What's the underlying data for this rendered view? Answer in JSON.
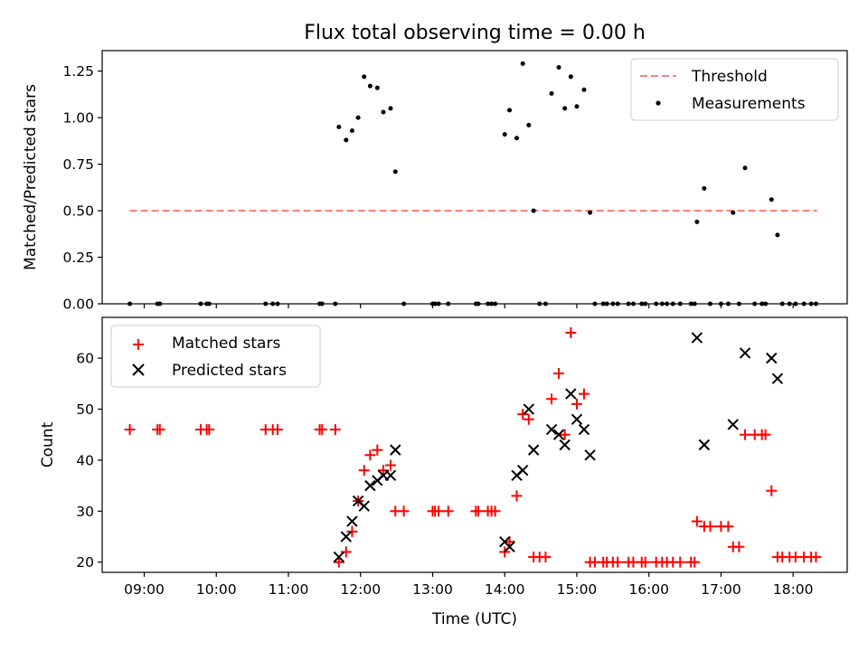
{
  "chart_data": [
    {
      "type": "scatter",
      "title": "Flux total observing time = 0.00 h",
      "xlabel": "",
      "ylabel": "Matched/Predicted stars",
      "xlim": [
        "08:25",
        "18:45"
      ],
      "ylim": [
        0,
        1.36
      ],
      "yticks": [
        0,
        0.25,
        0.5,
        0.75,
        1.0,
        1.25
      ],
      "ytick_labels": [
        "0.00",
        "0.25",
        "0.50",
        "0.75",
        "1.00",
        "1.25"
      ],
      "legend_position": "top-right",
      "legend": [
        "Threshold",
        "Measurements"
      ],
      "threshold": {
        "name": "Threshold",
        "color": "#ff7f7f",
        "style": "dashed",
        "x_range": [
          "08:48",
          "18:20"
        ],
        "y": 0.5
      },
      "series": [
        {
          "name": "Measurements",
          "color": "#000000",
          "marker": "dot",
          "points": [
            {
              "x": "08:48",
              "y": 0
            },
            {
              "x": "09:11",
              "y": 0
            },
            {
              "x": "09:13",
              "y": 0
            },
            {
              "x": "09:47",
              "y": 0
            },
            {
              "x": "09:52",
              "y": 0
            },
            {
              "x": "09:54",
              "y": 0
            },
            {
              "x": "10:41",
              "y": 0
            },
            {
              "x": "10:47",
              "y": 0
            },
            {
              "x": "10:51",
              "y": 0
            },
            {
              "x": "11:26",
              "y": 0
            },
            {
              "x": "11:28",
              "y": 0
            },
            {
              "x": "11:39",
              "y": 0
            },
            {
              "x": "11:42",
              "y": 0.95
            },
            {
              "x": "11:48",
              "y": 0.88
            },
            {
              "x": "11:53",
              "y": 0.93
            },
            {
              "x": "11:58",
              "y": 1.0
            },
            {
              "x": "12:03",
              "y": 1.22
            },
            {
              "x": "12:08",
              "y": 1.17
            },
            {
              "x": "12:14",
              "y": 1.16
            },
            {
              "x": "12:19",
              "y": 1.03
            },
            {
              "x": "12:25",
              "y": 1.05
            },
            {
              "x": "12:29",
              "y": 0.71
            },
            {
              "x": "12:36",
              "y": 0
            },
            {
              "x": "13:00",
              "y": 0
            },
            {
              "x": "13:02",
              "y": 0
            },
            {
              "x": "13:05",
              "y": 0
            },
            {
              "x": "13:13",
              "y": 0
            },
            {
              "x": "13:36",
              "y": 0
            },
            {
              "x": "13:38",
              "y": 0
            },
            {
              "x": "13:46",
              "y": 0
            },
            {
              "x": "13:49",
              "y": 0
            },
            {
              "x": "13:52",
              "y": 0
            },
            {
              "x": "14:00",
              "y": 0.91
            },
            {
              "x": "14:04",
              "y": 1.04
            },
            {
              "x": "14:10",
              "y": 0.89
            },
            {
              "x": "14:15",
              "y": 1.29
            },
            {
              "x": "14:20",
              "y": 0.96
            },
            {
              "x": "14:24",
              "y": 0.5
            },
            {
              "x": "14:29",
              "y": 0
            },
            {
              "x": "14:34",
              "y": 0
            },
            {
              "x": "14:39",
              "y": 1.13
            },
            {
              "x": "14:45",
              "y": 1.27
            },
            {
              "x": "14:50",
              "y": 1.05
            },
            {
              "x": "14:55",
              "y": 1.22
            },
            {
              "x": "15:00",
              "y": 1.06
            },
            {
              "x": "15:06",
              "y": 1.15
            },
            {
              "x": "15:11",
              "y": 0.49
            },
            {
              "x": "15:15",
              "y": 0
            },
            {
              "x": "15:22",
              "y": 0
            },
            {
              "x": "15:25",
              "y": 0
            },
            {
              "x": "15:30",
              "y": 0
            },
            {
              "x": "15:34",
              "y": 0
            },
            {
              "x": "15:43",
              "y": 0
            },
            {
              "x": "15:47",
              "y": 0
            },
            {
              "x": "15:54",
              "y": 0
            },
            {
              "x": "15:57",
              "y": 0
            },
            {
              "x": "16:06",
              "y": 0
            },
            {
              "x": "16:11",
              "y": 0
            },
            {
              "x": "16:15",
              "y": 0
            },
            {
              "x": "16:20",
              "y": 0
            },
            {
              "x": "16:26",
              "y": 0
            },
            {
              "x": "16:35",
              "y": 0
            },
            {
              "x": "16:38",
              "y": 0
            },
            {
              "x": "16:40",
              "y": 0.44
            },
            {
              "x": "16:46",
              "y": 0.62
            },
            {
              "x": "16:51",
              "y": 0
            },
            {
              "x": "17:00",
              "y": 0
            },
            {
              "x": "17:06",
              "y": 0
            },
            {
              "x": "17:10",
              "y": 0.49
            },
            {
              "x": "17:15",
              "y": 0
            },
            {
              "x": "17:20",
              "y": 0.73
            },
            {
              "x": "17:28",
              "y": 0
            },
            {
              "x": "17:34",
              "y": 0
            },
            {
              "x": "17:37",
              "y": 0
            },
            {
              "x": "17:42",
              "y": 0.56
            },
            {
              "x": "17:47",
              "y": 0.37
            },
            {
              "x": "17:51",
              "y": 0
            },
            {
              "x": "17:57",
              "y": 0
            },
            {
              "x": "18:02",
              "y": 0
            },
            {
              "x": "18:09",
              "y": 0
            },
            {
              "x": "18:15",
              "y": 0
            },
            {
              "x": "18:19",
              "y": 0
            }
          ]
        }
      ]
    },
    {
      "type": "scatter",
      "title": "",
      "xlabel": "Time (UTC)",
      "ylabel": "Count",
      "xlim": [
        "08:25",
        "18:45"
      ],
      "ylim": [
        18,
        68
      ],
      "yticks": [
        20,
        30,
        40,
        50,
        60
      ],
      "ytick_labels": [
        "20",
        "30",
        "40",
        "50",
        "60"
      ],
      "xticks": [
        "09:00",
        "10:00",
        "11:00",
        "12:00",
        "13:00",
        "14:00",
        "15:00",
        "16:00",
        "17:00",
        "18:00"
      ],
      "legend_position": "top-left",
      "legend": [
        "Matched stars",
        "Predicted stars"
      ],
      "series": [
        {
          "name": "Matched stars",
          "color": "#ff0000",
          "marker": "plus",
          "points": [
            {
              "x": "08:48",
              "y": 46
            },
            {
              "x": "09:11",
              "y": 46
            },
            {
              "x": "09:13",
              "y": 46
            },
            {
              "x": "09:47",
              "y": 46
            },
            {
              "x": "09:52",
              "y": 46
            },
            {
              "x": "09:54",
              "y": 46
            },
            {
              "x": "10:41",
              "y": 46
            },
            {
              "x": "10:47",
              "y": 46
            },
            {
              "x": "10:51",
              "y": 46
            },
            {
              "x": "11:26",
              "y": 46
            },
            {
              "x": "11:28",
              "y": 46
            },
            {
              "x": "11:39",
              "y": 46
            },
            {
              "x": "11:42",
              "y": 20
            },
            {
              "x": "11:48",
              "y": 22
            },
            {
              "x": "11:53",
              "y": 26
            },
            {
              "x": "11:58",
              "y": 32
            },
            {
              "x": "12:03",
              "y": 38
            },
            {
              "x": "12:08",
              "y": 41
            },
            {
              "x": "12:14",
              "y": 42
            },
            {
              "x": "12:19",
              "y": 38
            },
            {
              "x": "12:25",
              "y": 39
            },
            {
              "x": "12:29",
              "y": 30
            },
            {
              "x": "12:36",
              "y": 30
            },
            {
              "x": "13:00",
              "y": 30
            },
            {
              "x": "13:02",
              "y": 30
            },
            {
              "x": "13:05",
              "y": 30
            },
            {
              "x": "13:13",
              "y": 30
            },
            {
              "x": "13:36",
              "y": 30
            },
            {
              "x": "13:38",
              "y": 30
            },
            {
              "x": "13:46",
              "y": 30
            },
            {
              "x": "13:49",
              "y": 30
            },
            {
              "x": "13:52",
              "y": 30
            },
            {
              "x": "14:00",
              "y": 22
            },
            {
              "x": "14:04",
              "y": 24
            },
            {
              "x": "14:10",
              "y": 33
            },
            {
              "x": "14:15",
              "y": 49
            },
            {
              "x": "14:20",
              "y": 48
            },
            {
              "x": "14:24",
              "y": 21
            },
            {
              "x": "14:29",
              "y": 21
            },
            {
              "x": "14:34",
              "y": 21
            },
            {
              "x": "14:39",
              "y": 52
            },
            {
              "x": "14:45",
              "y": 57
            },
            {
              "x": "14:50",
              "y": 45
            },
            {
              "x": "14:55",
              "y": 65
            },
            {
              "x": "15:00",
              "y": 51
            },
            {
              "x": "15:06",
              "y": 53
            },
            {
              "x": "15:11",
              "y": 20
            },
            {
              "x": "15:15",
              "y": 20
            },
            {
              "x": "15:22",
              "y": 20
            },
            {
              "x": "15:25",
              "y": 20
            },
            {
              "x": "15:30",
              "y": 20
            },
            {
              "x": "15:34",
              "y": 20
            },
            {
              "x": "15:43",
              "y": 20
            },
            {
              "x": "15:47",
              "y": 20
            },
            {
              "x": "15:54",
              "y": 20
            },
            {
              "x": "15:57",
              "y": 20
            },
            {
              "x": "16:06",
              "y": 20
            },
            {
              "x": "16:11",
              "y": 20
            },
            {
              "x": "16:15",
              "y": 20
            },
            {
              "x": "16:20",
              "y": 20
            },
            {
              "x": "16:26",
              "y": 20
            },
            {
              "x": "16:35",
              "y": 20
            },
            {
              "x": "16:38",
              "y": 20
            },
            {
              "x": "16:40",
              "y": 28
            },
            {
              "x": "16:46",
              "y": 27
            },
            {
              "x": "16:51",
              "y": 27
            },
            {
              "x": "17:00",
              "y": 27
            },
            {
              "x": "17:06",
              "y": 27
            },
            {
              "x": "17:10",
              "y": 23
            },
            {
              "x": "17:15",
              "y": 23
            },
            {
              "x": "17:20",
              "y": 45
            },
            {
              "x": "17:28",
              "y": 45
            },
            {
              "x": "17:34",
              "y": 45
            },
            {
              "x": "17:37",
              "y": 45
            },
            {
              "x": "17:42",
              "y": 34
            },
            {
              "x": "17:47",
              "y": 21
            },
            {
              "x": "17:51",
              "y": 21
            },
            {
              "x": "17:57",
              "y": 21
            },
            {
              "x": "18:02",
              "y": 21
            },
            {
              "x": "18:09",
              "y": 21
            },
            {
              "x": "18:15",
              "y": 21
            },
            {
              "x": "18:19",
              "y": 21
            }
          ]
        },
        {
          "name": "Predicted stars",
          "color": "#000000",
          "marker": "cross",
          "points": [
            {
              "x": "11:42",
              "y": 21
            },
            {
              "x": "11:48",
              "y": 25
            },
            {
              "x": "11:53",
              "y": 28
            },
            {
              "x": "11:58",
              "y": 32
            },
            {
              "x": "12:03",
              "y": 31
            },
            {
              "x": "12:08",
              "y": 35
            },
            {
              "x": "12:14",
              "y": 36
            },
            {
              "x": "12:19",
              "y": 37
            },
            {
              "x": "12:25",
              "y": 37
            },
            {
              "x": "12:29",
              "y": 42
            },
            {
              "x": "14:00",
              "y": 24
            },
            {
              "x": "14:04",
              "y": 23
            },
            {
              "x": "14:10",
              "y": 37
            },
            {
              "x": "14:15",
              "y": 38
            },
            {
              "x": "14:20",
              "y": 50
            },
            {
              "x": "14:24",
              "y": 42
            },
            {
              "x": "14:39",
              "y": 46
            },
            {
              "x": "14:45",
              "y": 45
            },
            {
              "x": "14:50",
              "y": 43
            },
            {
              "x": "14:55",
              "y": 53
            },
            {
              "x": "15:00",
              "y": 48
            },
            {
              "x": "15:06",
              "y": 46
            },
            {
              "x": "15:11",
              "y": 41
            },
            {
              "x": "16:40",
              "y": 64
            },
            {
              "x": "16:46",
              "y": 43
            },
            {
              "x": "17:10",
              "y": 47
            },
            {
              "x": "17:20",
              "y": 61
            },
            {
              "x": "17:42",
              "y": 60
            },
            {
              "x": "17:47",
              "y": 56
            }
          ]
        }
      ]
    }
  ]
}
